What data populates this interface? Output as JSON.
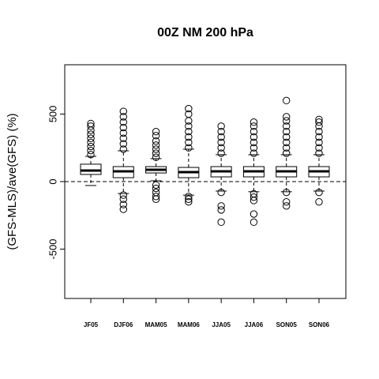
{
  "chart_data": {
    "type": "boxplot",
    "title": "00Z NM 200 hPa",
    "y_label": "(GFS-MLS)/ave(GFS) (%)",
    "categories": [
      "JF05",
      "DJF06",
      "MAM05",
      "MAM06",
      "JJA05",
      "JJA06",
      "SON05",
      "SON06"
    ],
    "boxes": [
      {
        "whisker_low": -29,
        "q1": 53,
        "median": 82,
        "q3": 129,
        "whisker_high": 187,
        "outliers": [
          200,
          230,
          260,
          290,
          320,
          350,
          380,
          410,
          430
        ]
      },
      {
        "whisker_low": -88,
        "q1": 29,
        "median": 76,
        "q3": 111,
        "whisker_high": 228,
        "outliers": [
          240,
          280,
          320,
          360,
          400,
          440,
          480,
          520,
          -100,
          -130,
          -170,
          -205
        ]
      },
      {
        "whisker_low": 6,
        "q1": 64,
        "median": 88,
        "q3": 111,
        "whisker_high": 170,
        "outliers": [
          180,
          210,
          240,
          270,
          300,
          340,
          370,
          -25,
          -50,
          -80,
          -110,
          -130
        ]
      },
      {
        "whisker_low": -100,
        "q1": 29,
        "median": 70,
        "q3": 105,
        "whisker_high": 240,
        "outliers": [
          250,
          290,
          330,
          370,
          410,
          450,
          500,
          540,
          -110,
          -130,
          -150
        ]
      },
      {
        "whisker_low": -70,
        "q1": 35,
        "median": 76,
        "q3": 111,
        "whisker_high": 199,
        "outliers": [
          210,
          250,
          290,
          330,
          370,
          410,
          -80,
          -180,
          -210,
          -300
        ]
      },
      {
        "whisker_low": -75,
        "q1": 35,
        "median": 76,
        "q3": 111,
        "whisker_high": 199,
        "outliers": [
          210,
          250,
          290,
          330,
          370,
          410,
          440,
          -90,
          -115,
          -140,
          -240,
          -300
        ]
      },
      {
        "whisker_low": -75,
        "q1": 35,
        "median": 76,
        "q3": 111,
        "whisker_high": 199,
        "outliers": [
          210,
          250,
          290,
          330,
          370,
          410,
          450,
          480,
          600,
          -80,
          -150,
          -180
        ]
      },
      {
        "whisker_low": -70,
        "q1": 35,
        "median": 76,
        "q3": 111,
        "whisker_high": 199,
        "outliers": [
          210,
          250,
          290,
          330,
          370,
          410,
          440,
          460,
          -80,
          -150
        ]
      }
    ],
    "ylim": [
      -865,
      865
    ],
    "yticks": [
      -500,
      0,
      500
    ],
    "hline": 0
  }
}
